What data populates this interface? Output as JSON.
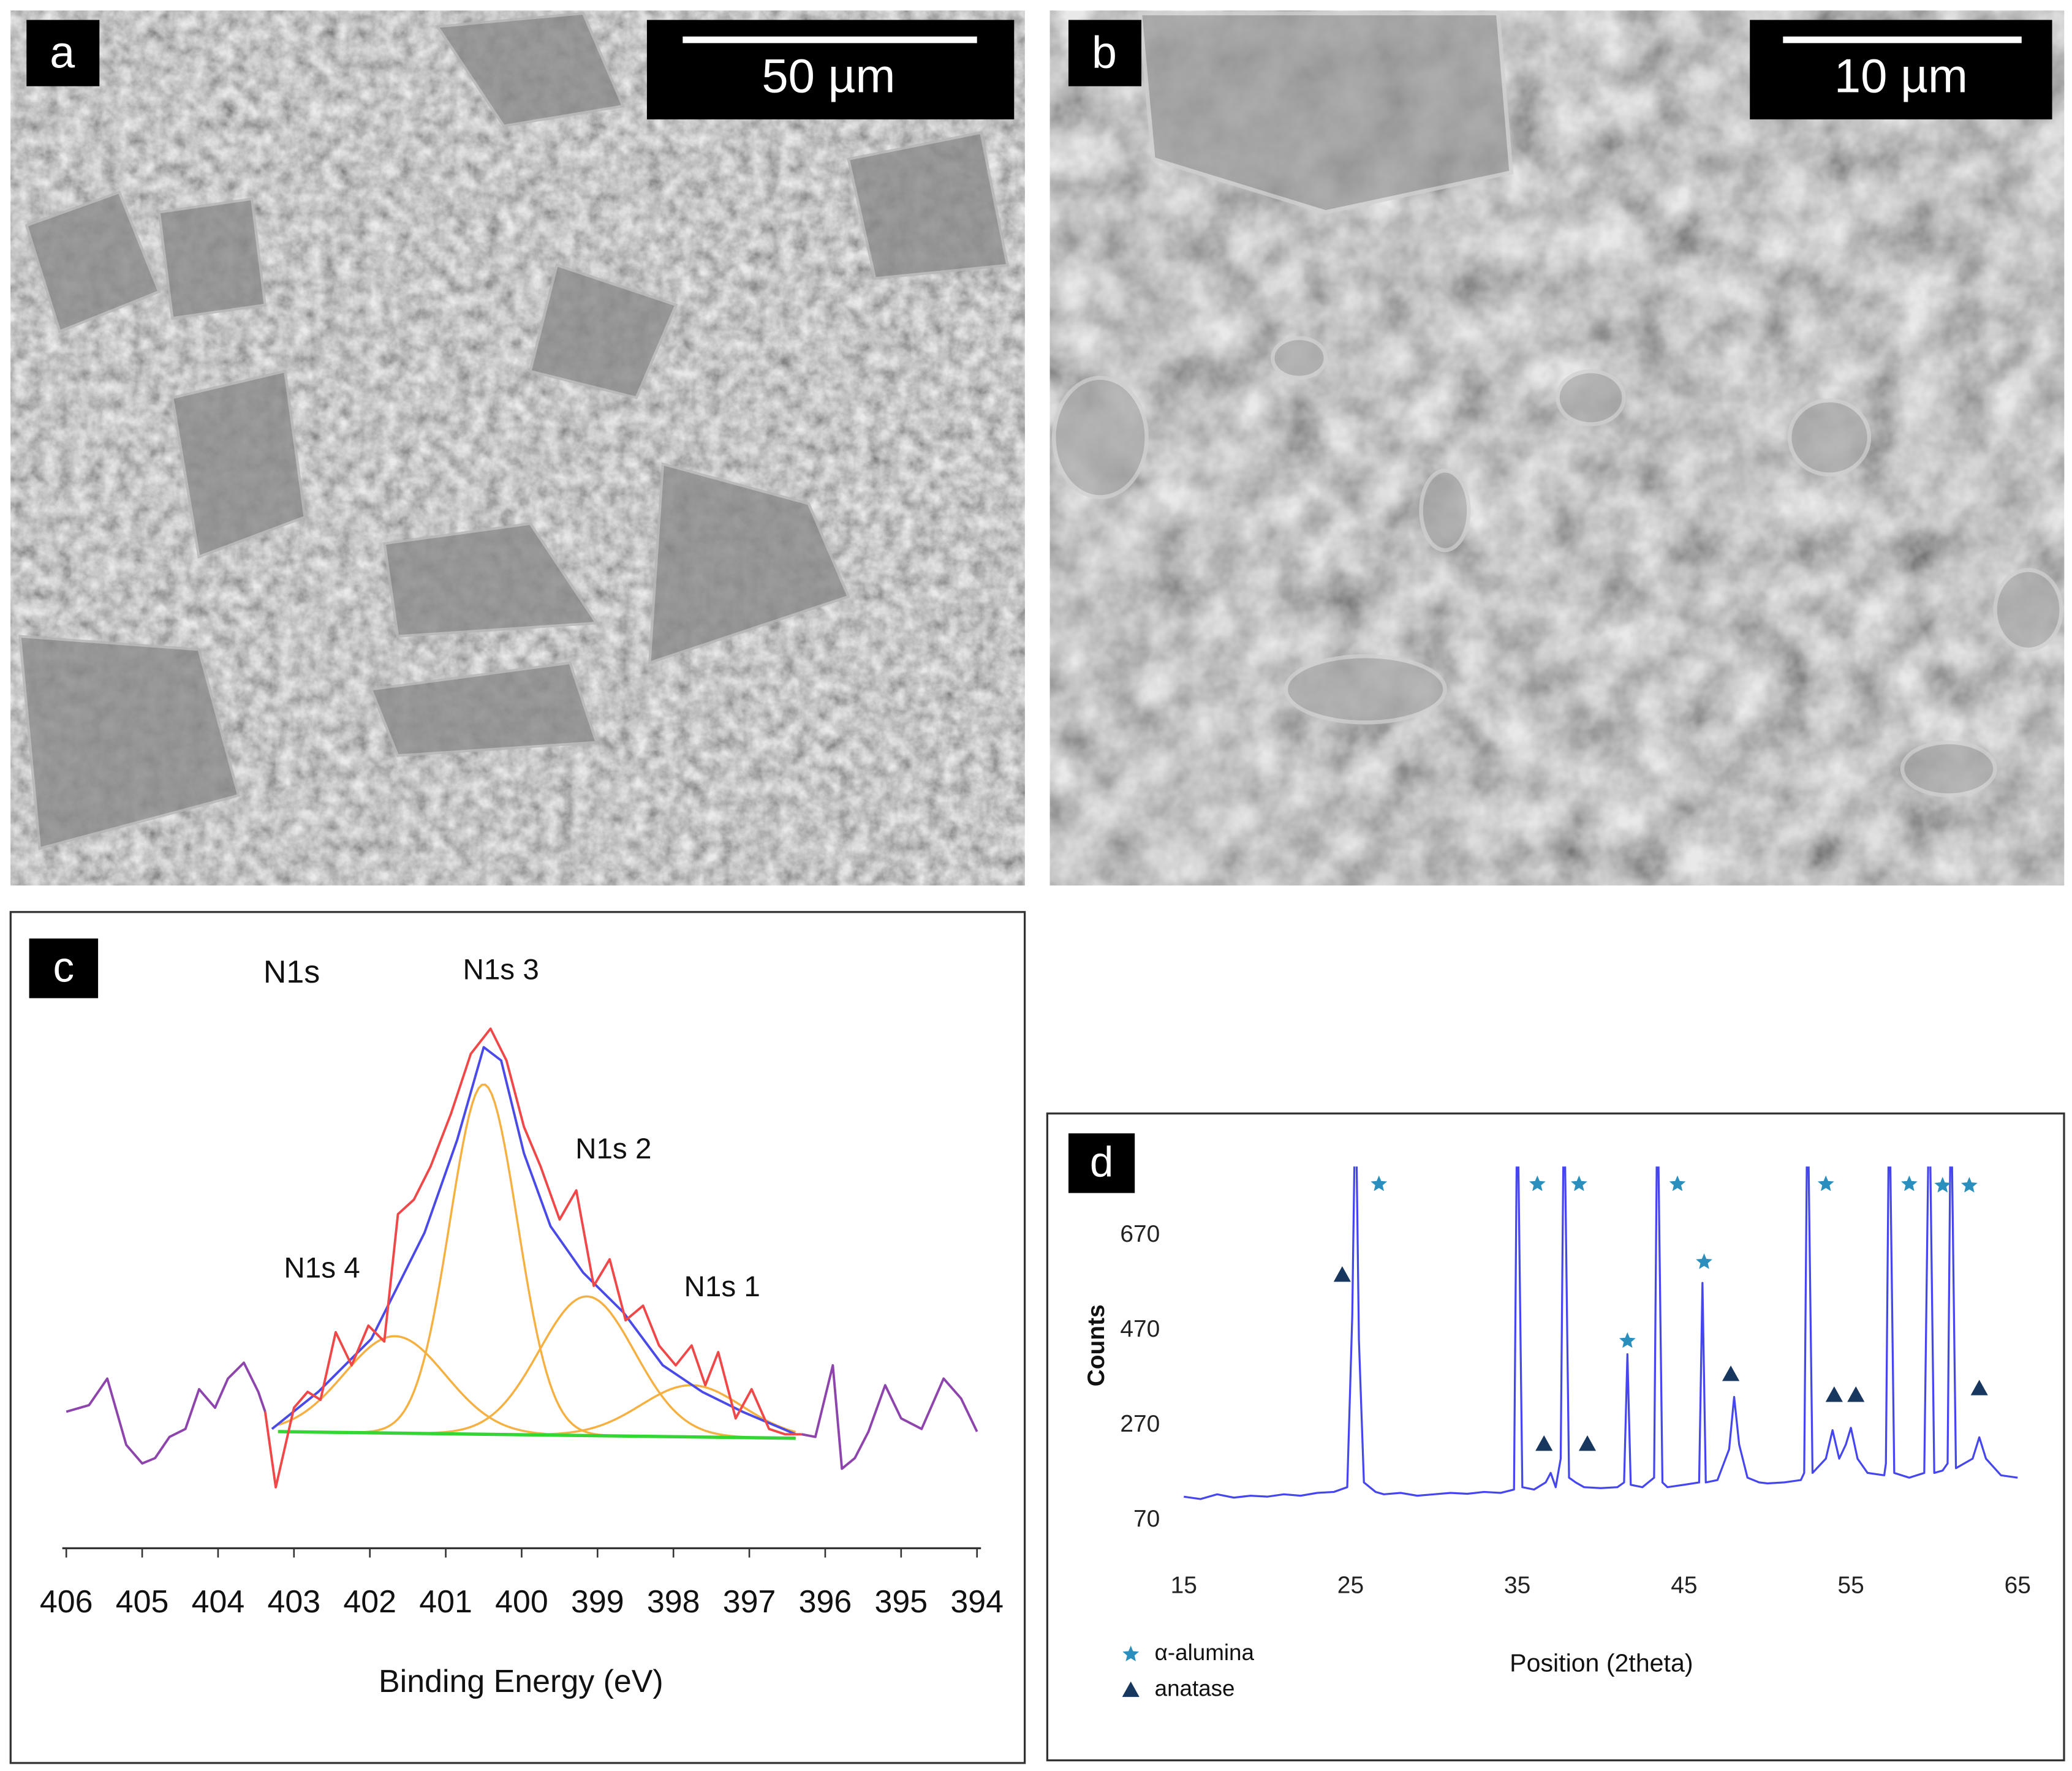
{
  "panels": [
    {
      "label": "a",
      "scale_bar": "50 µm"
    },
    {
      "label": "b",
      "scale_bar": "10 µm"
    }
  ],
  "chart_data": [
    {
      "type": "line",
      "panel_label": "c",
      "title": "N1s",
      "xlabel": "Binding Energy (eV)",
      "xlim": [
        406,
        394
      ],
      "xticks": [
        406,
        405,
        404,
        403,
        402,
        401,
        400,
        399,
        398,
        397,
        396,
        395,
        394
      ],
      "ylim": [
        0,
        110
      ],
      "series": [
        {
          "color": "#4a4ae8",
          "x": [
            403.29,
            402.68,
            401.98,
            401.28,
            400.85,
            400.5,
            400.27,
            399.97,
            399.62,
            399.19,
            398.66,
            398.14,
            397.62,
            397.09,
            396.39
          ],
          "values": [
            22.5,
            29.5,
            39.5,
            59.5,
            77,
            94.5,
            92,
            74.5,
            60.75,
            52,
            44.5,
            34.5,
            29.5,
            25.75,
            21.5
          ]
        },
        {
          "color": "#f04848",
          "x": [
            403.38,
            403.24,
            403.0,
            402.82,
            402.65,
            402.45,
            402.24,
            402.02,
            401.81,
            401.63,
            401.42,
            401.2,
            400.93,
            400.67,
            400.41,
            400.2,
            399.97,
            399.75,
            399.5,
            399.28,
            399.05,
            398.84,
            398.63,
            398.4,
            398.19,
            397.97,
            397.76,
            397.58,
            397.41,
            397.18,
            396.97,
            396.74,
            396.53,
            396.31
          ],
          "values": [
            25.75,
            11.5,
            26.5,
            29.5,
            28,
            40.75,
            34.5,
            42,
            39,
            63,
            65.75,
            72,
            82,
            93.25,
            98,
            92,
            79.5,
            72,
            62,
            67.5,
            49.5,
            54.5,
            43,
            45.75,
            38.25,
            34.5,
            38.25,
            30.75,
            37,
            24.5,
            30,
            22.5,
            21.5,
            21.5
          ]
        },
        {
          "color": "#8e44ad",
          "x": [
            406,
            405.7,
            405.46,
            405.21,
            405.0,
            404.83,
            404.64,
            404.43,
            404.25,
            404.04,
            403.87,
            403.66,
            403.47,
            403.38
          ],
          "values": [
            25.75,
            27,
            32,
            19.5,
            16,
            17,
            21,
            22.5,
            30,
            26.5,
            32,
            35,
            29.5,
            25.75
          ]
        },
        {
          "color": "#8e44ad",
          "x": [
            396.31,
            396.13,
            395.9,
            395.78,
            395.61,
            395.43,
            395.21,
            395.0,
            394.73,
            394.44,
            394.21,
            394.0
          ],
          "values": [
            21.5,
            21,
            34.5,
            15,
            17,
            22,
            30.75,
            24.5,
            22.5,
            32,
            28.25,
            22
          ]
        }
      ],
      "baseline": {
        "color": "#33d633",
        "x": [
          403.21,
          396.39
        ],
        "values": [
          22,
          20.75
        ]
      },
      "components": [
        {
          "name": "N1s 1",
          "color": "#f5b041",
          "center": 397.76,
          "height": 30.75,
          "fwhm": 1.57
        },
        {
          "name": "N1s 2",
          "color": "#f5b041",
          "center": 399.14,
          "height": 47.5,
          "fwhm": 1.48
        },
        {
          "name": "N1s 3",
          "color": "#f5b041",
          "center": 400.5,
          "height": 87.5,
          "fwhm": 1.05
        },
        {
          "name": "N1s 4",
          "color": "#f5b041",
          "center": 401.67,
          "height": 40,
          "fwhm": 1.57
        }
      ]
    },
    {
      "type": "line",
      "panel_label": "d",
      "xlabel": "Position (2theta)",
      "ylabel": "Counts",
      "xlim": [
        15,
        65
      ],
      "xticks": [
        15,
        25,
        35,
        45,
        55,
        65
      ],
      "ylim": [
        70,
        800
      ],
      "yticks": [
        70,
        270,
        470,
        670
      ],
      "color": "#4646ee",
      "legend": "bottom-left",
      "x": [
        15,
        16,
        17,
        18,
        19,
        20,
        21,
        22,
        23,
        24,
        24.8,
        25.1,
        25.3,
        25.5,
        25.8,
        26.5,
        27,
        28,
        29,
        30,
        31,
        32,
        33,
        34,
        34.8,
        35.0,
        35.3,
        36,
        36.7,
        37,
        37.3,
        37.6,
        37.8,
        38.1,
        38.5,
        39,
        40,
        41,
        41.4,
        41.6,
        41.8,
        42.5,
        43.2,
        43.4,
        43.7,
        44,
        45,
        45.9,
        46.1,
        46.3,
        47,
        47.7,
        48,
        48.3,
        48.8,
        49.5,
        50,
        51,
        52,
        52.2,
        52.4,
        52.7,
        53.5,
        53.9,
        54.3,
        54.7,
        55,
        55.4,
        56,
        57,
        57.1,
        57.3,
        57.6,
        58.5,
        59.4,
        59.7,
        60,
        60.5,
        60.8,
        61,
        61.3,
        62.3,
        62.7,
        63.1,
        64,
        65
      ],
      "values": [
        120,
        115,
        125,
        118,
        122,
        120,
        125,
        122,
        128,
        130,
        140,
        500,
        1000,
        450,
        150,
        130,
        125,
        128,
        122,
        125,
        128,
        126,
        130,
        128,
        135,
        1000,
        140,
        135,
        150,
        170,
        140,
        200,
        1000,
        160,
        150,
        140,
        138,
        140,
        150,
        420,
        145,
        140,
        160,
        1000,
        150,
        140,
        145,
        150,
        570,
        150,
        155,
        220,
        330,
        230,
        160,
        150,
        148,
        150,
        155,
        170,
        1000,
        170,
        200,
        260,
        200,
        230,
        265,
        200,
        170,
        165,
        190,
        1000,
        170,
        160,
        170,
        1000,
        170,
        175,
        190,
        1000,
        180,
        200,
        245,
        200,
        165,
        160
      ],
      "markers": [
        {
          "name": "α-alumina",
          "symbol": "star",
          "color": "#2a8fbd",
          "x": [
            26.7,
            36.2,
            38.7,
            41.6,
            44.6,
            46.2,
            53.5,
            58.5,
            60.5,
            62.1
          ],
          "values": [
            778,
            778,
            778,
            448,
            778,
            614,
            778,
            778,
            775,
            775
          ]
        },
        {
          "name": "anatase",
          "symbol": "triangle",
          "color": "#17375e",
          "x": [
            24.5,
            36.6,
            39.2,
            47.8,
            54.0,
            55.3,
            62.7
          ],
          "values": [
            587,
            231,
            231,
            378,
            334,
            334,
            348
          ]
        }
      ]
    }
  ]
}
